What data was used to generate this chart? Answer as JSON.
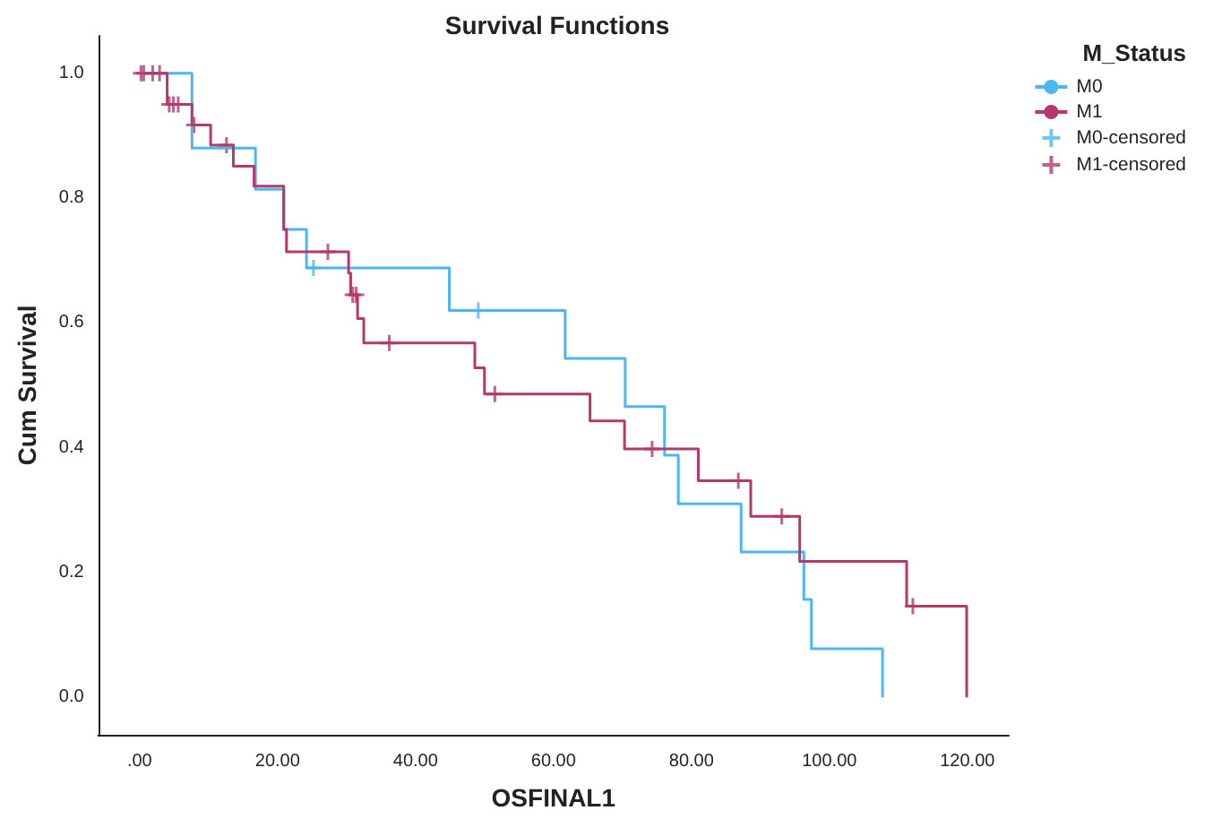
{
  "chart_data": {
    "type": "step",
    "title": "Survival Functions",
    "xlabel": "OSFINAL1",
    "ylabel": "Cum Survival",
    "legend_title": "M_Status",
    "legend": "top right",
    "grid": false,
    "xlim": [
      -6,
      126
    ],
    "ylim": [
      -0.06,
      1.06
    ],
    "xticks": [
      {
        "value": 0,
        "label": ".00"
      },
      {
        "value": 20,
        "label": "20.00"
      },
      {
        "value": 40,
        "label": "40.00"
      },
      {
        "value": 60,
        "label": "60.00"
      },
      {
        "value": 80,
        "label": "80.00"
      },
      {
        "value": 100,
        "label": "100.00"
      },
      {
        "value": 120,
        "label": "120.00"
      }
    ],
    "yticks": [
      {
        "value": 0,
        "label": "0.0"
      },
      {
        "value": 0.2,
        "label": "0.2"
      },
      {
        "value": 0.4,
        "label": "0.4"
      },
      {
        "value": 0.6,
        "label": "0.6"
      },
      {
        "value": 0.8,
        "label": "0.8"
      },
      {
        "value": 1,
        "label": "1.0"
      }
    ],
    "series": [
      {
        "name": "M0",
        "color": "#4db6f2",
        "line_style": "solid",
        "x": [
          0,
          7.6,
          16.8,
          20.9,
          24.2,
          44.9,
          61.7,
          70.4,
          76.1,
          78.1,
          87.2,
          96.3,
          97.4,
          107.7
        ],
        "values": [
          1,
          0.88,
          0.814,
          0.75,
          0.688,
          0.62,
          0.543,
          0.466,
          0.388,
          0.31,
          0.233,
          0.157,
          0.078,
          0
        ]
      },
      {
        "name": "M1",
        "color": "#b3386b",
        "line_style": "solid",
        "x": [
          0,
          4.0,
          7.6,
          10.3,
          13.6,
          16.6,
          20.9,
          21.3,
          30.3,
          30.6,
          31.6,
          32.5,
          48.6,
          50.0,
          65.3,
          70.3,
          81.0,
          88.6,
          95.7,
          111.2,
          119.9
        ],
        "values": [
          1,
          0.95,
          0.917,
          0.885,
          0.851,
          0.819,
          0.75,
          0.714,
          0.68,
          0.645,
          0.607,
          0.568,
          0.528,
          0.486,
          0.443,
          0.398,
          0.347,
          0.29,
          0.218,
          0.146,
          0
        ]
      },
      {
        "name": "M0-censored",
        "type": "scatter",
        "marker": "cross",
        "color": "#4db6f2",
        "x": [
          25.2,
          49.1
        ],
        "values": [
          0.688,
          0.62
        ]
      },
      {
        "name": "M1-censored",
        "type": "scatter",
        "marker": "cross",
        "color": "#b3386b",
        "x": [
          0.2,
          0.6,
          1.9,
          2.9,
          4.3,
          4.9,
          5.6,
          7.9,
          12.6,
          27.3,
          30.9,
          31.4,
          36.2,
          51.5,
          74.3,
          86.8,
          93.1,
          112.1
        ],
        "values": [
          1,
          1,
          1,
          1,
          0.95,
          0.95,
          0.95,
          0.917,
          0.885,
          0.714,
          0.645,
          0.645,
          0.568,
          0.486,
          0.398,
          0.347,
          0.29,
          0.146
        ]
      }
    ]
  }
}
